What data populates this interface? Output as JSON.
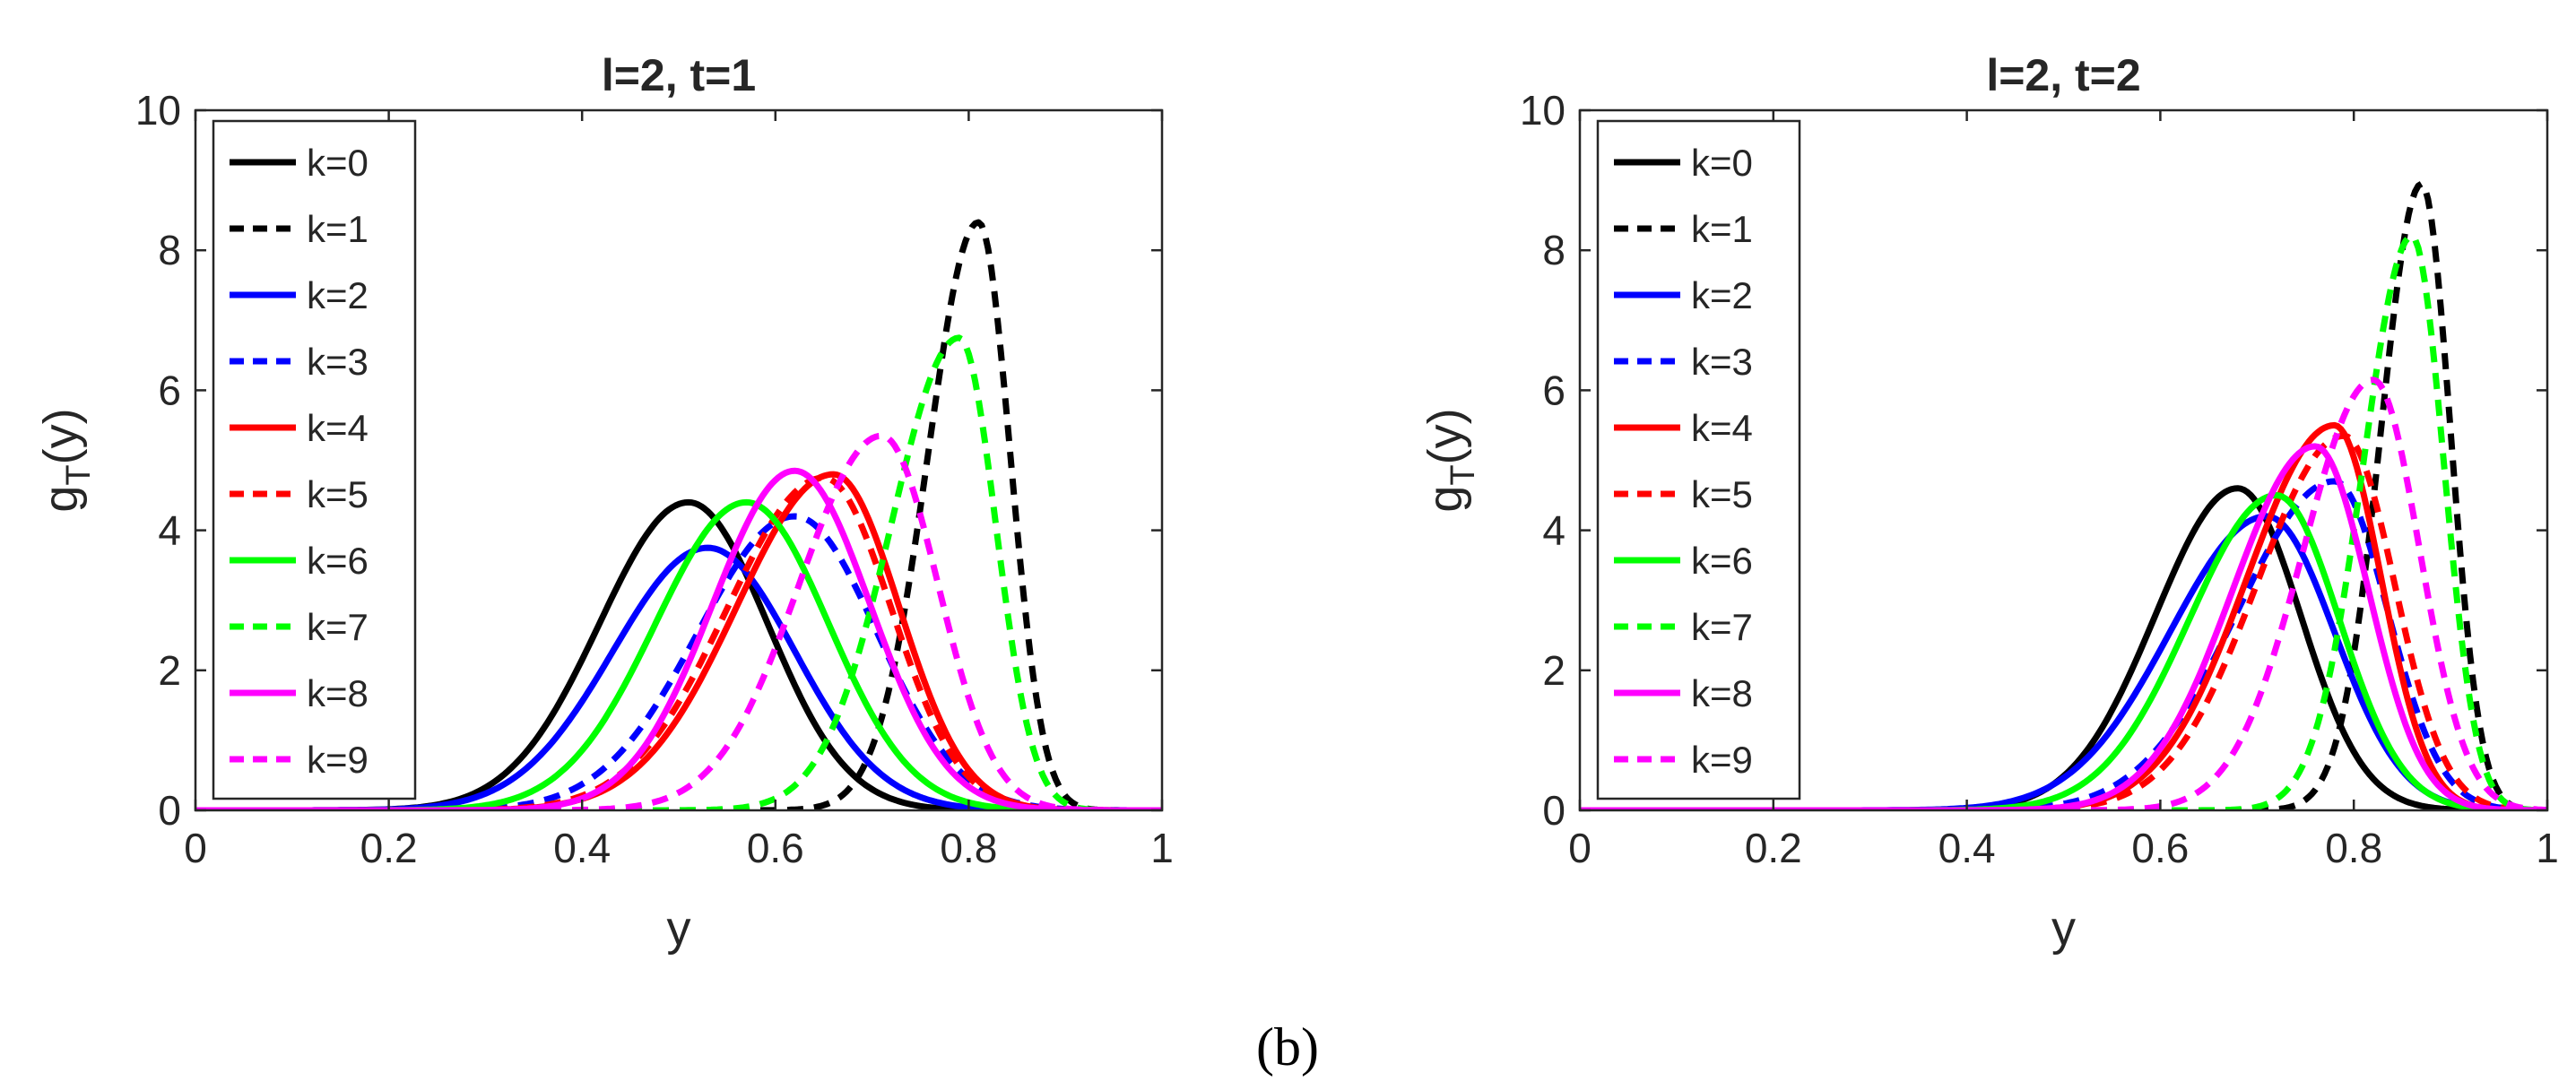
{
  "figure": {
    "caption": "(b)"
  },
  "chart_data": [
    {
      "type": "line",
      "title": "l=2, t=1",
      "xlabel": "y",
      "ylabel": "g_T(y)",
      "ylabel_parts": [
        "g",
        "T",
        "(y)"
      ],
      "xlim": [
        0,
        1
      ],
      "ylim": [
        0,
        10
      ],
      "xticks": [
        0,
        0.2,
        0.4,
        0.6,
        0.8,
        1
      ],
      "xtick_labels": [
        "0",
        "0.2",
        "0.4",
        "0.6",
        "0.8",
        "1"
      ],
      "yticks": [
        0,
        2,
        4,
        6,
        8,
        10
      ],
      "ytick_labels": [
        "0",
        "2",
        "4",
        "6",
        "8",
        "10"
      ],
      "grid": false,
      "legend_position": "top-left",
      "series": [
        {
          "name": "k=0",
          "color": "#000000",
          "dash": "solid",
          "peak_x": 0.51,
          "peak_y": 4.4,
          "sigma_left": 0.092,
          "sigma_right": 0.082
        },
        {
          "name": "k=1",
          "color": "#000000",
          "dash": "dashed",
          "peak_x": 0.81,
          "peak_y": 8.4,
          "sigma_left": 0.052,
          "sigma_right": 0.033
        },
        {
          "name": "k=2",
          "color": "#0000ff",
          "dash": "solid",
          "peak_x": 0.53,
          "peak_y": 3.75,
          "sigma_left": 0.098,
          "sigma_right": 0.09
        },
        {
          "name": "k=3",
          "color": "#0000ff",
          "dash": "dashed",
          "peak_x": 0.62,
          "peak_y": 4.2,
          "sigma_left": 0.1,
          "sigma_right": 0.085
        },
        {
          "name": "k=4",
          "color": "#ff0000",
          "dash": "solid",
          "peak_x": 0.66,
          "peak_y": 4.8,
          "sigma_left": 0.1,
          "sigma_right": 0.068
        },
        {
          "name": "k=5",
          "color": "#ff0000",
          "dash": "dashed",
          "peak_x": 0.65,
          "peak_y": 4.75,
          "sigma_left": 0.1,
          "sigma_right": 0.07
        },
        {
          "name": "k=6",
          "color": "#00ff00",
          "dash": "solid",
          "peak_x": 0.57,
          "peak_y": 4.4,
          "sigma_left": 0.094,
          "sigma_right": 0.085
        },
        {
          "name": "k=7",
          "color": "#00ff00",
          "dash": "dashed",
          "peak_x": 0.79,
          "peak_y": 6.75,
          "sigma_left": 0.07,
          "sigma_right": 0.038
        },
        {
          "name": "k=8",
          "color": "#ff00ff",
          "dash": "solid",
          "peak_x": 0.62,
          "peak_y": 4.85,
          "sigma_left": 0.085,
          "sigma_right": 0.078
        },
        {
          "name": "k=9",
          "color": "#ff00ff",
          "dash": "dashed",
          "peak_x": 0.71,
          "peak_y": 5.35,
          "sigma_left": 0.085,
          "sigma_right": 0.058
        }
      ]
    },
    {
      "type": "line",
      "title": "l=2, t=2",
      "xlabel": "y",
      "ylabel": "g_T(y)",
      "ylabel_parts": [
        "g",
        "T",
        "(y)"
      ],
      "xlim": [
        0,
        1
      ],
      "ylim": [
        0,
        10
      ],
      "xticks": [
        0,
        0.2,
        0.4,
        0.6,
        0.8,
        1
      ],
      "xtick_labels": [
        "0",
        "0.2",
        "0.4",
        "0.6",
        "0.8",
        "1"
      ],
      "yticks": [
        0,
        2,
        4,
        6,
        8,
        10
      ],
      "ytick_labels": [
        "0",
        "2",
        "4",
        "6",
        "8",
        "10"
      ],
      "grid": false,
      "legend_position": "top-left",
      "series": [
        {
          "name": "k=0",
          "color": "#000000",
          "dash": "solid",
          "peak_x": 0.68,
          "peak_y": 4.6,
          "sigma_left": 0.085,
          "sigma_right": 0.065
        },
        {
          "name": "k=1",
          "color": "#000000",
          "dash": "dashed",
          "peak_x": 0.87,
          "peak_y": 8.95,
          "sigma_left": 0.042,
          "sigma_right": 0.03
        },
        {
          "name": "k=2",
          "color": "#0000ff",
          "dash": "solid",
          "peak_x": 0.71,
          "peak_y": 4.2,
          "sigma_left": 0.1,
          "sigma_right": 0.07
        },
        {
          "name": "k=3",
          "color": "#0000ff",
          "dash": "dashed",
          "peak_x": 0.78,
          "peak_y": 4.7,
          "sigma_left": 0.1,
          "sigma_right": 0.055
        },
        {
          "name": "k=4",
          "color": "#ff0000",
          "dash": "solid",
          "peak_x": 0.78,
          "peak_y": 5.5,
          "sigma_left": 0.09,
          "sigma_right": 0.048
        },
        {
          "name": "k=5",
          "color": "#ff0000",
          "dash": "dashed",
          "peak_x": 0.79,
          "peak_y": 5.35,
          "sigma_left": 0.09,
          "sigma_right": 0.052
        },
        {
          "name": "k=6",
          "color": "#00ff00",
          "dash": "solid",
          "peak_x": 0.72,
          "peak_y": 4.5,
          "sigma_left": 0.09,
          "sigma_right": 0.065
        },
        {
          "name": "k=7",
          "color": "#00ff00",
          "dash": "dashed",
          "peak_x": 0.86,
          "peak_y": 8.2,
          "sigma_left": 0.05,
          "sigma_right": 0.033
        },
        {
          "name": "k=8",
          "color": "#ff00ff",
          "dash": "solid",
          "peak_x": 0.76,
          "peak_y": 5.2,
          "sigma_left": 0.085,
          "sigma_right": 0.055
        },
        {
          "name": "k=9",
          "color": "#ff00ff",
          "dash": "dashed",
          "peak_x": 0.82,
          "peak_y": 6.15,
          "sigma_left": 0.072,
          "sigma_right": 0.048
        }
      ]
    }
  ]
}
